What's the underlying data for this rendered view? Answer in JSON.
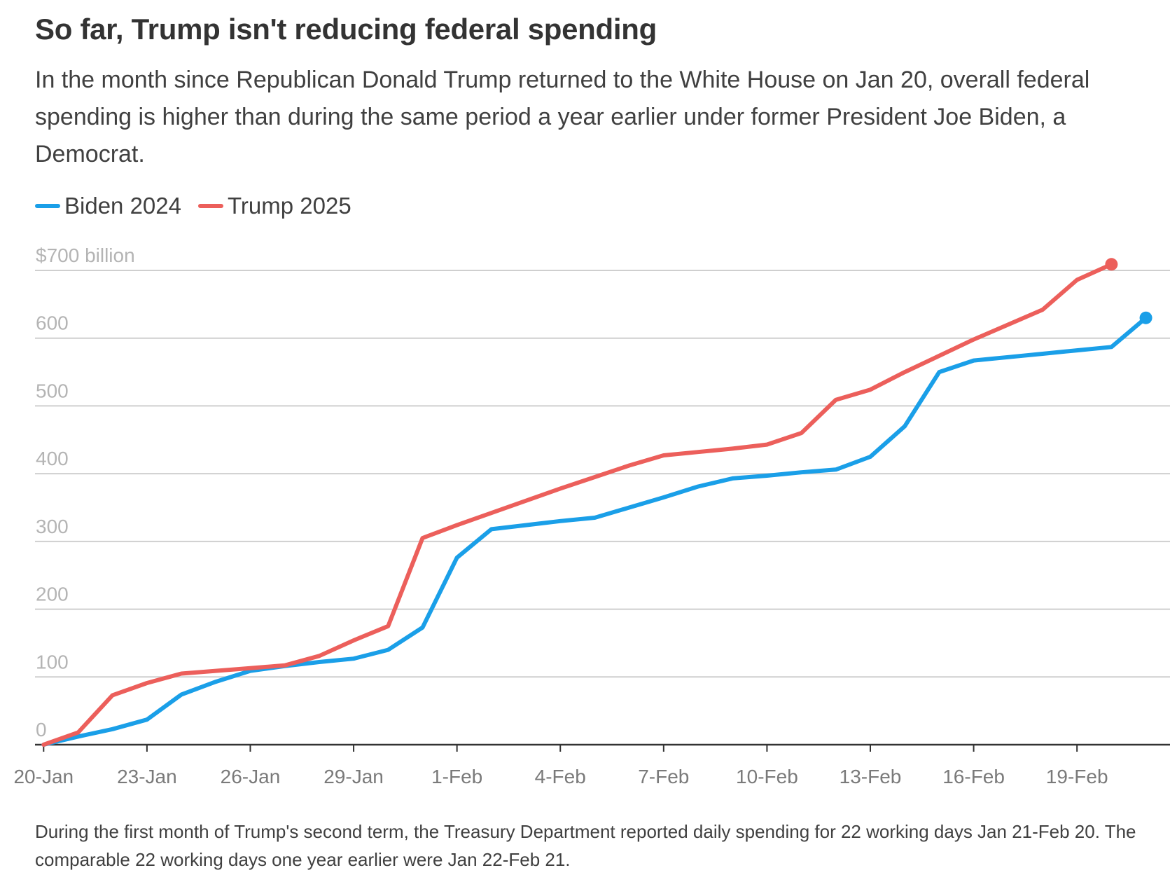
{
  "header": {
    "title": "So far, Trump isn't reducing federal spending",
    "subtitle": "In the month since Republican Donald Trump returned to the White House on Jan 20, overall federal spending is higher than during the same period a year earlier under former President Joe Biden, a Democrat."
  },
  "footnote": "During the first month of Trump's second term, the Treasury Department reported daily spending for 22 working days Jan 21-Feb 20. The comparable 22 working days one year earlier were Jan 22-Feb 21.",
  "chart_data": {
    "type": "line",
    "title": "So far, Trump isn't reducing federal spending",
    "xlabel": "",
    "ylabel": "",
    "x_ticks": [
      "20-Jan",
      "23-Jan",
      "26-Jan",
      "29-Jan",
      "1-Feb",
      "4-Feb",
      "7-Feb",
      "10-Feb",
      "13-Feb",
      "16-Feb",
      "19-Feb"
    ],
    "x_range": [
      -0.25,
      32.7
    ],
    "y_ticks": [
      0,
      100,
      200,
      300,
      400,
      500,
      600,
      700
    ],
    "y_tick_labels": [
      "0",
      "100",
      "200",
      "300",
      "400",
      "500",
      "600",
      "$700 billion"
    ],
    "ylim": [
      0,
      700
    ],
    "grid": true,
    "legend_position": "top-left",
    "series": [
      {
        "name": "Biden 2024",
        "color": "#1a9fe8",
        "end_marker": true,
        "x": [
          0,
          1,
          2,
          3,
          4,
          5,
          6,
          7,
          8,
          9,
          10,
          11,
          12,
          13,
          14,
          15,
          16,
          17,
          18,
          19,
          20,
          21,
          22,
          23,
          24,
          25,
          26,
          27,
          28,
          29,
          30,
          31,
          32
        ],
        "y": [
          0,
          12,
          23,
          37,
          74,
          93,
          109,
          116,
          122,
          127,
          140,
          173,
          276,
          318,
          324,
          330,
          335,
          350,
          365,
          381,
          393,
          397,
          402,
          406,
          425,
          470,
          550,
          567,
          572,
          577,
          582,
          587,
          630
        ]
      },
      {
        "name": "Trump 2025",
        "color": "#ec5f5b",
        "end_marker": true,
        "x": [
          0,
          1,
          2,
          3,
          4,
          5,
          6,
          7,
          8,
          9,
          10,
          11,
          12,
          13,
          14,
          15,
          16,
          17,
          18,
          19,
          20,
          21,
          22,
          23,
          24,
          25,
          26,
          27,
          28,
          29,
          30,
          31
        ],
        "y": [
          0,
          18,
          73,
          91,
          105,
          109,
          113,
          117,
          131,
          154,
          175,
          305,
          324,
          342,
          360,
          378,
          395,
          412,
          427,
          432,
          437,
          443,
          460,
          509,
          524,
          550,
          574,
          598,
          620,
          642,
          686,
          709
        ]
      }
    ]
  }
}
